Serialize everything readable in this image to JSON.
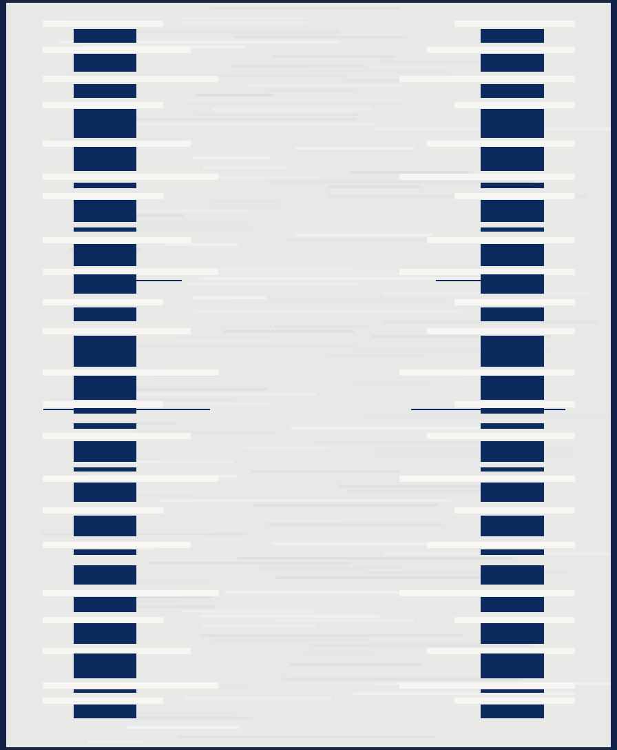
{
  "image": {
    "subject": "rug",
    "colors": {
      "field": "#e8e8e6",
      "accent": "#0d2a5e",
      "highlight": "#f7f6f2",
      "edge": "#14224a"
    }
  }
}
